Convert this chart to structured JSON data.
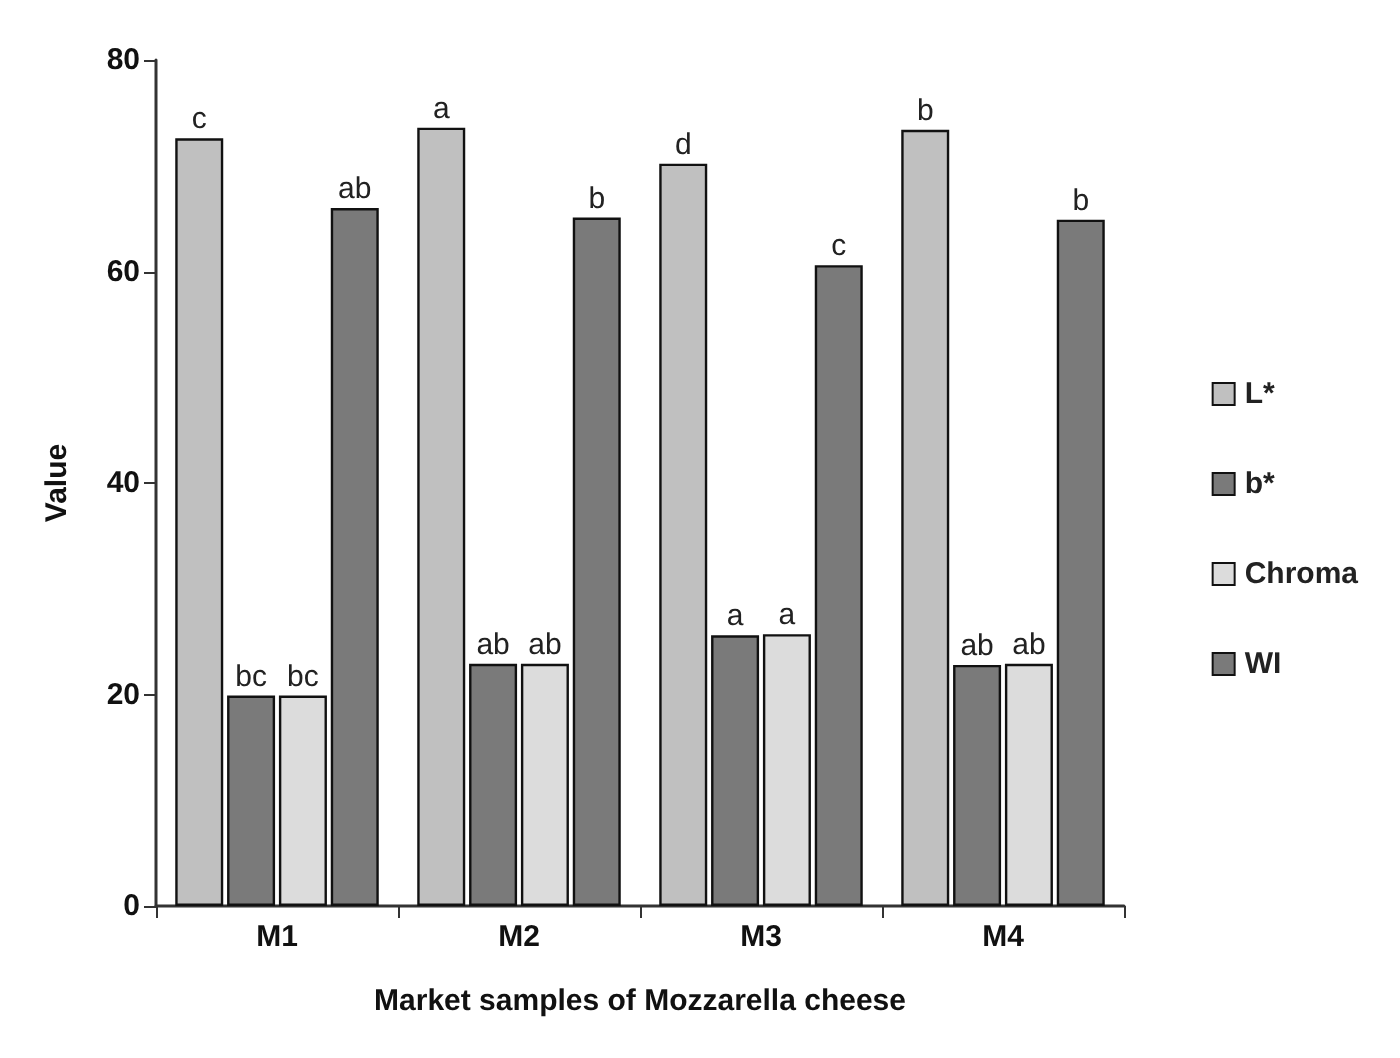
{
  "chart_data": {
    "type": "bar",
    "xlabel": "Market samples of Mozzarella cheese",
    "ylabel": "Value",
    "categories": [
      "M1",
      "M2",
      "M3",
      "M4"
    ],
    "series": [
      {
        "name": "L*",
        "color": "#c0c0c0",
        "values": [
          72.6,
          73.6,
          70.2,
          73.4
        ],
        "value_labels": [
          "c",
          "a",
          "d",
          "b"
        ]
      },
      {
        "name": "b*",
        "color": "#7a7a7a",
        "values": [
          19.9,
          22.9,
          25.6,
          22.8
        ],
        "value_labels": [
          "bc",
          "ab",
          "a",
          "ab"
        ]
      },
      {
        "name": "Chroma",
        "color": "#dcdcdc",
        "values": [
          19.9,
          22.9,
          25.7,
          22.9
        ],
        "value_labels": [
          "bc",
          "ab",
          "a",
          "ab"
        ]
      },
      {
        "name": "WI",
        "color": "#7a7a7a",
        "values": [
          66.0,
          65.1,
          60.6,
          64.9
        ],
        "value_labels": [
          "ab",
          "b",
          "c",
          "b"
        ]
      }
    ],
    "ylim": [
      0,
      80
    ],
    "yticks": [
      0,
      20,
      40,
      60,
      80
    ],
    "grid": false,
    "legend": "right"
  }
}
